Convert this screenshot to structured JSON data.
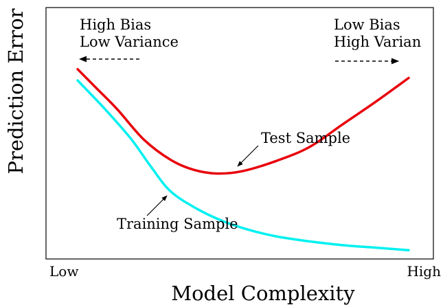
{
  "chart_data": {
    "type": "line",
    "title": "",
    "xlabel": "Model Complexity",
    "ylabel": "Prediction Error",
    "x_ticks": [
      "Low",
      "High"
    ],
    "xlim": [
      0,
      1
    ],
    "ylim": [
      0,
      1
    ],
    "grid": false,
    "legend": "none",
    "series": [
      {
        "name": "Test Sample",
        "color": "#e8000b",
        "points": [
          [
            0.0,
            0.755
          ],
          [
            0.06,
            0.675
          ],
          [
            0.12,
            0.595
          ],
          [
            0.2,
            0.475
          ],
          [
            0.28,
            0.395
          ],
          [
            0.35,
            0.355
          ],
          [
            0.42,
            0.34
          ],
          [
            0.5,
            0.35
          ],
          [
            0.6,
            0.39
          ],
          [
            0.7,
            0.445
          ],
          [
            0.8,
            0.535
          ],
          [
            0.9,
            0.625
          ],
          [
            1.0,
            0.72
          ]
        ]
      },
      {
        "name": "Training Sample",
        "color": "#00f0f0",
        "points": [
          [
            0.0,
            0.71
          ],
          [
            0.08,
            0.6
          ],
          [
            0.16,
            0.48
          ],
          [
            0.22,
            0.37
          ],
          [
            0.28,
            0.27
          ],
          [
            0.36,
            0.2
          ],
          [
            0.44,
            0.15
          ],
          [
            0.52,
            0.115
          ],
          [
            0.6,
            0.09
          ],
          [
            0.7,
            0.07
          ],
          [
            0.8,
            0.055
          ],
          [
            0.9,
            0.045
          ],
          [
            1.0,
            0.035
          ]
        ]
      }
    ],
    "annotations": [
      {
        "text_lines": [
          "High Bias",
          "Low Variance"
        ],
        "arrow": "left",
        "position": "top-left"
      },
      {
        "text_lines": [
          "Low Bias",
          "High Varian"
        ],
        "arrow": "right",
        "position": "top-right"
      },
      {
        "text": "Test Sample",
        "points_to": "Test Sample"
      },
      {
        "text": "Training Sample",
        "points_to": "Training Sample"
      }
    ]
  }
}
